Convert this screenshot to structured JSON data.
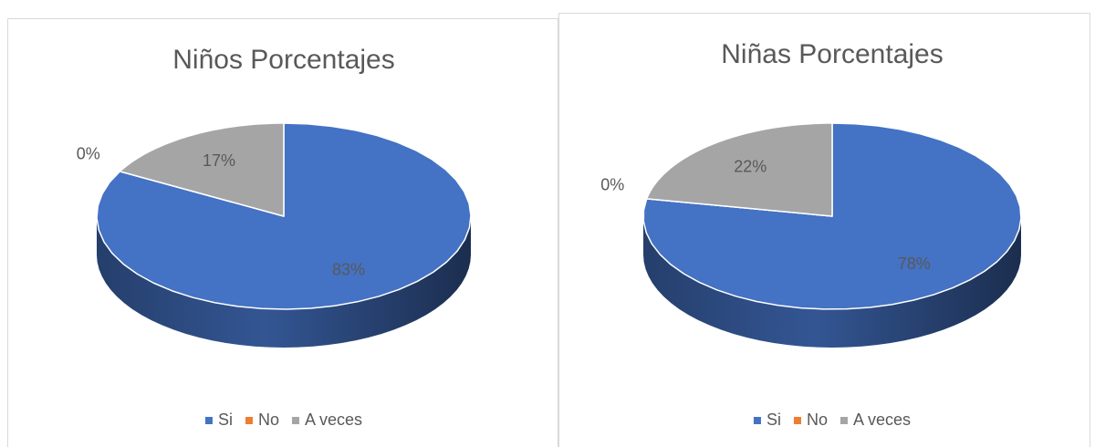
{
  "chart_data": [
    {
      "type": "pie",
      "title": "Niños Porcentajes",
      "categories": [
        "Si",
        "No",
        "A veces"
      ],
      "values": [
        83,
        0,
        17
      ],
      "value_labels": [
        "83%",
        "0%",
        "17%"
      ],
      "colors": [
        "#4472c4",
        "#ed7d31",
        "#a5a5a5"
      ],
      "legend": "bottom"
    },
    {
      "type": "pie",
      "title": "Niñas Porcentajes",
      "categories": [
        "Si",
        "No",
        "A veces"
      ],
      "values": [
        78,
        0,
        22
      ],
      "value_labels": [
        "78%",
        "0%",
        "22%"
      ],
      "colors": [
        "#4472c4",
        "#ed7d31",
        "#a5a5a5"
      ],
      "legend": "bottom"
    }
  ]
}
